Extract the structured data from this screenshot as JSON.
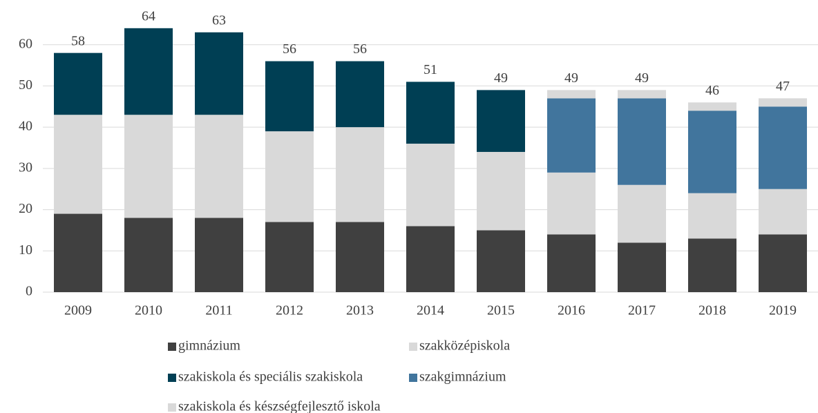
{
  "chart_data": {
    "type": "bar",
    "stacked": true,
    "categories": [
      "2009",
      "2010",
      "2011",
      "2012",
      "2013",
      "2014",
      "2015",
      "2016",
      "2017",
      "2018",
      "2019"
    ],
    "series": [
      {
        "name": "gimnázium",
        "color": "#404040",
        "values": [
          19,
          18,
          18,
          17,
          17,
          16,
          15,
          14,
          12,
          13,
          14
        ]
      },
      {
        "name": "szakközépiskola",
        "color": "#d9d9d9",
        "values": [
          24,
          25,
          25,
          22,
          23,
          20,
          19,
          15,
          14,
          11,
          11
        ]
      },
      {
        "name": "szakiskola és speciális szakiskola",
        "color": "#003f54",
        "values": [
          15,
          21,
          20,
          17,
          16,
          15,
          15,
          null,
          null,
          null,
          null
        ]
      },
      {
        "name": "szakgimnázium",
        "color": "#41759d",
        "values": [
          null,
          null,
          null,
          null,
          null,
          null,
          null,
          18,
          21,
          20,
          20
        ]
      },
      {
        "name": "szakiskola és készségfejlesztő iskola",
        "color": "#d9d9d9",
        "values": [
          null,
          null,
          null,
          null,
          null,
          null,
          null,
          2,
          2,
          2,
          2
        ]
      }
    ],
    "totals": [
      58,
      64,
      63,
      56,
      56,
      51,
      49,
      49,
      49,
      46,
      47
    ],
    "ylim": [
      0,
      70
    ],
    "yticks": [
      0,
      10,
      20,
      30,
      40,
      50,
      60
    ],
    "grid": true
  }
}
